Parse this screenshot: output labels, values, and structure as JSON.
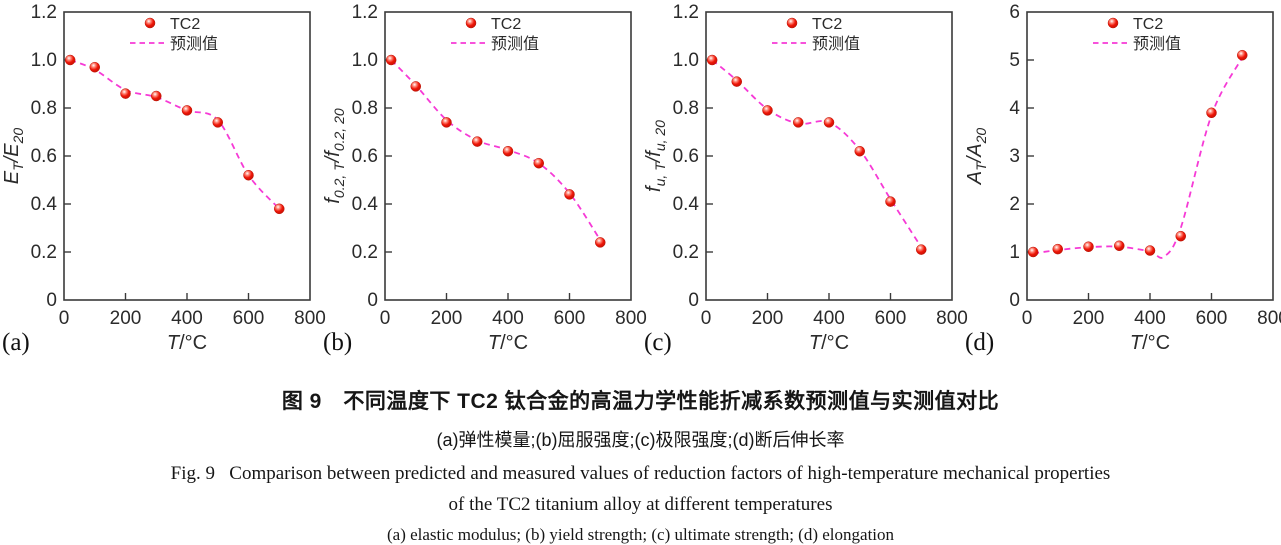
{
  "page": {
    "background": "#ffffff"
  },
  "colors": {
    "marker_fill": "#ee1507",
    "marker_edge": "#b81104",
    "marker_highlight": "#ffffff",
    "predicted_line": "#f63ad6",
    "axis": "#3a3a3a",
    "tick_text": "#2b2b2b"
  },
  "legend": {
    "measured_label": "TC2",
    "predicted_label": "预测值"
  },
  "chart_data": [
    {
      "type": "scatter",
      "panel_label": "(a)",
      "xlabel": "T/°C",
      "ylabel": "E_{T}/E_{20}",
      "xlim": [
        0,
        800
      ],
      "ylim": [
        0,
        1.2
      ],
      "xticks": [
        0,
        200,
        400,
        600,
        800
      ],
      "xtick_labels": [
        "0",
        "200",
        "400",
        "600",
        "800"
      ],
      "yticks": [
        0,
        0.2,
        0.4,
        0.6,
        0.8,
        1.0,
        1.2
      ],
      "ytick_labels": [
        "0",
        "0.2",
        "0.4",
        "0.6",
        "0.8",
        "1.0",
        "1.2"
      ],
      "grid": false,
      "legend_position": "top-center-inside",
      "series": [
        {
          "name": "TC2",
          "kind": "scatter",
          "x": [
            20,
            100,
            200,
            300,
            400,
            500,
            600,
            700
          ],
          "y": [
            1.0,
            0.97,
            0.86,
            0.85,
            0.79,
            0.74,
            0.52,
            0.38
          ]
        },
        {
          "name": "预测值",
          "kind": "dashed_line",
          "x": [
            20,
            100,
            200,
            300,
            400,
            500,
            600,
            700
          ],
          "y": [
            1.0,
            0.96,
            0.875,
            0.845,
            0.79,
            0.75,
            0.52,
            0.38
          ]
        }
      ]
    },
    {
      "type": "scatter",
      "panel_label": "(b)",
      "xlabel": "T/°C",
      "ylabel": "f_{0.2, T}/f_{0.2, 20}",
      "xlim": [
        0,
        800
      ],
      "ylim": [
        0,
        1.2
      ],
      "xticks": [
        0,
        200,
        400,
        600,
        800
      ],
      "xtick_labels": [
        "0",
        "200",
        "400",
        "600",
        "800"
      ],
      "yticks": [
        0,
        0.2,
        0.4,
        0.6,
        0.8,
        1.0,
        1.2
      ],
      "ytick_labels": [
        "0",
        "0.2",
        "0.4",
        "0.6",
        "0.8",
        "1.0",
        "1.2"
      ],
      "grid": false,
      "legend_position": "top-center-inside",
      "series": [
        {
          "name": "TC2",
          "kind": "scatter",
          "x": [
            20,
            100,
            200,
            300,
            400,
            500,
            600,
            700
          ],
          "y": [
            1.0,
            0.89,
            0.74,
            0.66,
            0.62,
            0.57,
            0.44,
            0.24
          ]
        },
        {
          "name": "预测值",
          "kind": "dashed_line",
          "x": [
            20,
            100,
            200,
            300,
            400,
            500,
            600,
            700
          ],
          "y": [
            1.0,
            0.895,
            0.75,
            0.665,
            0.625,
            0.57,
            0.445,
            0.25
          ]
        }
      ]
    },
    {
      "type": "scatter",
      "panel_label": "(c)",
      "xlabel": "T/°C",
      "ylabel": "f_{u, T}/f_{u, 20}",
      "xlim": [
        0,
        800
      ],
      "ylim": [
        0,
        1.2
      ],
      "xticks": [
        0,
        200,
        400,
        600,
        800
      ],
      "xtick_labels": [
        "0",
        "200",
        "400",
        "600",
        "800"
      ],
      "yticks": [
        0,
        0.2,
        0.4,
        0.6,
        0.8,
        1.0,
        1.2
      ],
      "ytick_labels": [
        "0",
        "0.2",
        "0.4",
        "0.6",
        "0.8",
        "1.0",
        "1.2"
      ],
      "grid": false,
      "legend_position": "top-center-inside",
      "series": [
        {
          "name": "TC2",
          "kind": "scatter",
          "x": [
            20,
            100,
            200,
            300,
            400,
            500,
            600,
            700
          ],
          "y": [
            1.0,
            0.91,
            0.79,
            0.74,
            0.74,
            0.62,
            0.41,
            0.21
          ]
        },
        {
          "name": "预测值",
          "kind": "dashed_line",
          "x": [
            20,
            100,
            200,
            300,
            400,
            500,
            600,
            700
          ],
          "y": [
            1.0,
            0.915,
            0.795,
            0.735,
            0.74,
            0.625,
            0.42,
            0.22
          ]
        }
      ]
    },
    {
      "type": "scatter",
      "panel_label": "(d)",
      "xlabel": "T/°C",
      "ylabel": "A_{T}/A_{20}",
      "xlim": [
        0,
        800
      ],
      "ylim": [
        0,
        6
      ],
      "xticks": [
        0,
        200,
        400,
        600,
        800
      ],
      "xtick_labels": [
        "0",
        "200",
        "400",
        "600",
        "800"
      ],
      "yticks": [
        0,
        1,
        2,
        3,
        4,
        5,
        6
      ],
      "ytick_labels": [
        "0",
        "1",
        "2",
        "3",
        "4",
        "5",
        "6"
      ],
      "grid": false,
      "legend_position": "top-center-inside",
      "series": [
        {
          "name": "TC2",
          "kind": "scatter",
          "x": [
            20,
            100,
            200,
            300,
            400,
            500,
            600,
            700
          ],
          "y": [
            1.0,
            1.06,
            1.11,
            1.13,
            1.03,
            1.33,
            3.9,
            5.1
          ]
        },
        {
          "name": "预测值",
          "kind": "dashed_line",
          "x": [
            20,
            100,
            200,
            300,
            400,
            445,
            500,
            600,
            700
          ],
          "y": [
            0.97,
            1.04,
            1.1,
            1.11,
            1.01,
            0.9,
            1.5,
            3.85,
            5.05
          ]
        }
      ]
    }
  ],
  "caption": {
    "cn_title": "图 9　不同温度下 TC2 钛合金的高温力学性能折减系数预测值与实测值对比",
    "cn_subtitle": "(a)弹性模量;(b)屈服强度;(c)极限强度;(d)断后伸长率",
    "en_title_line1": "Fig. 9   Comparison between predicted and measured values of reduction factors of high-temperature mechanical properties",
    "en_title_line2": "of the TC2 titanium alloy at different temperatures",
    "en_subtitle": "(a) elastic modulus; (b) yield strength; (c) ultimate strength; (d) elongation"
  }
}
